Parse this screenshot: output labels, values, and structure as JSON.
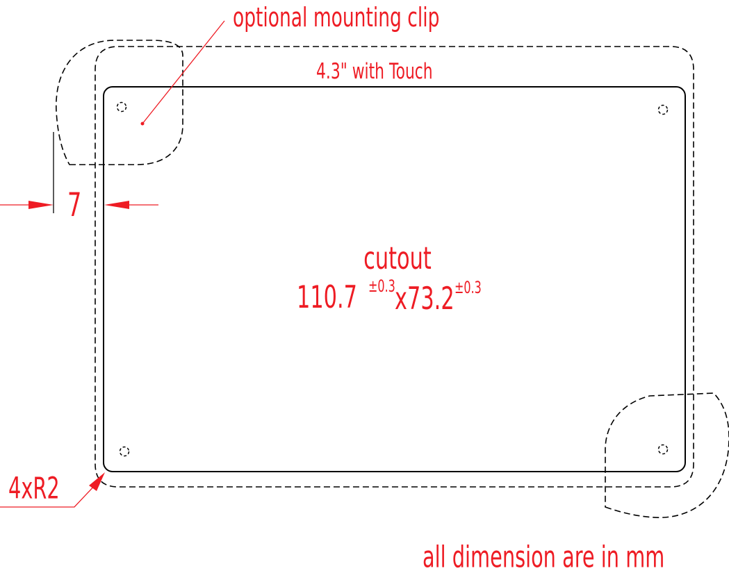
{
  "labels": {
    "mounting_clip": "optional mounting clip",
    "product": "4.3\" with Touch",
    "clearance": "7",
    "cutout_title": "cutout",
    "cutout_width": "110.7",
    "cutout_height": "x73.2",
    "tolerance_width": "±0.3",
    "tolerance_height": "±0.3",
    "corner_radius": "4xR2",
    "units_note": "all dimension are in mm"
  },
  "colors": {
    "annotation": "#ee1c24",
    "outline": "#000000",
    "background": "#ffffff"
  }
}
